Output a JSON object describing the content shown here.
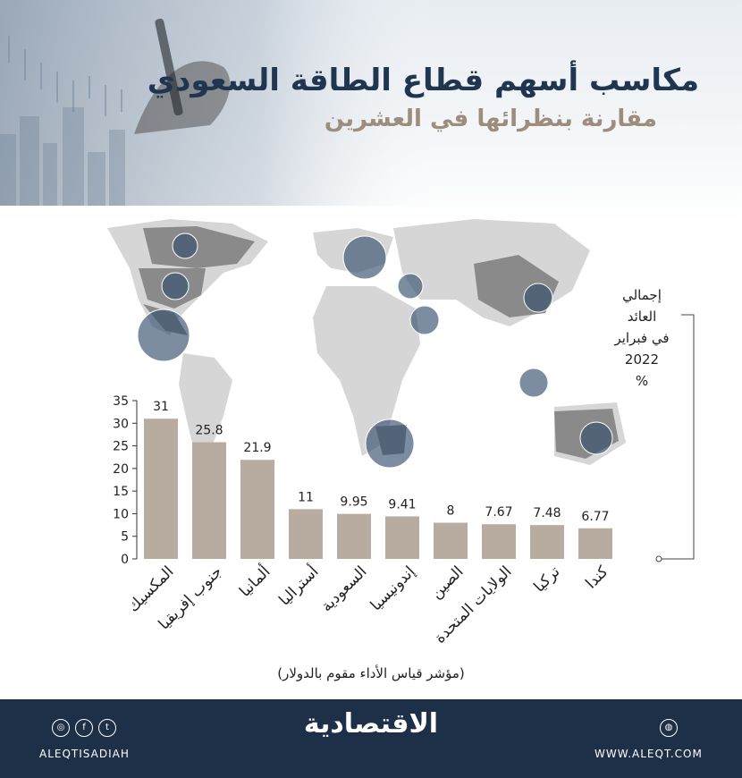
{
  "header": {
    "title": "مكاسب أسهم قطاع الطاقة السعودي",
    "subtitle": "مقارنة بنظرائها في العشرين"
  },
  "side_note": [
    "إجمالي",
    "العائد",
    "في فبراير",
    "2022",
    "%"
  ],
  "chart_data": {
    "type": "bar",
    "categories": [
      "المكسيك",
      "جنوب إفريقيا",
      "ألمانيا",
      "أستراليا",
      "السعودية",
      "إندونيسيا",
      "الصين",
      "الولايات المتحدة",
      "تركيا",
      "كندا"
    ],
    "values": [
      31,
      25.8,
      21.9,
      11,
      9.95,
      9.41,
      8,
      7.67,
      7.48,
      6.77
    ],
    "value_labels": [
      "31",
      "25.8",
      "21.9",
      "11",
      "9.95",
      "9.41",
      "8",
      "7.67",
      "7.48",
      "6.77"
    ],
    "yticks": [
      0,
      5,
      10,
      15,
      20,
      25,
      30,
      35
    ],
    "ylim": [
      0,
      35
    ],
    "xlabel": "(مؤشر قياس الأداء مقوم بالدولار)",
    "grid": false,
    "bar_color": "#b8aca0"
  },
  "footer": {
    "logo": "الاقتصادية",
    "handle": "ALEQTISADIAH",
    "website": "WWW.ALEQT.COM",
    "social_icons": [
      "instagram-icon",
      "facebook-icon",
      "twitter-icon"
    ]
  }
}
